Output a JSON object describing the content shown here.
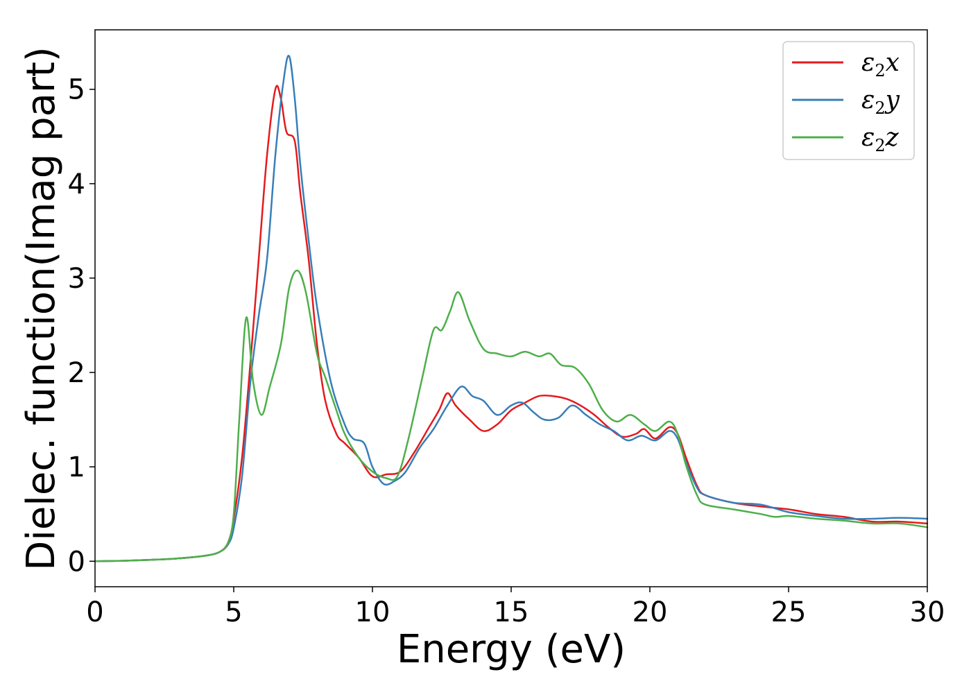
{
  "chart_data": {
    "type": "line",
    "title": "",
    "xlabel": "Energy (eV)",
    "ylabel": "Dielec. function(Imag part)",
    "xlim": [
      0,
      30
    ],
    "ylim": [
      -0.27,
      5.63
    ],
    "xticks": [
      0,
      5,
      10,
      15,
      20,
      25,
      30
    ],
    "yticks": [
      0,
      1,
      2,
      3,
      4,
      5
    ],
    "grid": false,
    "legend_position": "top-right",
    "series": [
      {
        "name": "ε2x",
        "symbol": "ε",
        "subscript": "2",
        "suffix": "x",
        "color": "#e41a1c",
        "points": [
          [
            0,
            0
          ],
          [
            1,
            0.005
          ],
          [
            2,
            0.015
          ],
          [
            3,
            0.03
          ],
          [
            4,
            0.06
          ],
          [
            4.5,
            0.1
          ],
          [
            4.8,
            0.2
          ],
          [
            5.0,
            0.45
          ],
          [
            5.3,
            1.1
          ],
          [
            5.6,
            2.1
          ],
          [
            5.9,
            3.2
          ],
          [
            6.2,
            4.3
          ],
          [
            6.5,
            5.0
          ],
          [
            6.7,
            4.9
          ],
          [
            6.9,
            4.55
          ],
          [
            7.2,
            4.45
          ],
          [
            7.4,
            3.9
          ],
          [
            7.7,
            3.2
          ],
          [
            8.0,
            2.3
          ],
          [
            8.3,
            1.7
          ],
          [
            8.7,
            1.35
          ],
          [
            9.0,
            1.25
          ],
          [
            9.5,
            1.1
          ],
          [
            10.0,
            0.9
          ],
          [
            10.5,
            0.92
          ],
          [
            11.0,
            0.95
          ],
          [
            11.5,
            1.15
          ],
          [
            12.0,
            1.4
          ],
          [
            12.4,
            1.6
          ],
          [
            12.7,
            1.78
          ],
          [
            13.0,
            1.65
          ],
          [
            13.5,
            1.5
          ],
          [
            14.0,
            1.38
          ],
          [
            14.5,
            1.45
          ],
          [
            15.0,
            1.6
          ],
          [
            15.5,
            1.68
          ],
          [
            16.0,
            1.75
          ],
          [
            16.5,
            1.75
          ],
          [
            17.0,
            1.72
          ],
          [
            17.5,
            1.65
          ],
          [
            18.0,
            1.55
          ],
          [
            18.5,
            1.42
          ],
          [
            19.0,
            1.32
          ],
          [
            19.5,
            1.35
          ],
          [
            19.8,
            1.4
          ],
          [
            20.2,
            1.3
          ],
          [
            20.7,
            1.42
          ],
          [
            21.0,
            1.35
          ],
          [
            21.3,
            1.1
          ],
          [
            21.7,
            0.8
          ],
          [
            22.0,
            0.7
          ],
          [
            23.0,
            0.62
          ],
          [
            24.0,
            0.58
          ],
          [
            25.0,
            0.55
          ],
          [
            26.0,
            0.5
          ],
          [
            27.0,
            0.47
          ],
          [
            28.0,
            0.42
          ],
          [
            29.0,
            0.42
          ],
          [
            30.0,
            0.4
          ]
        ]
      },
      {
        "name": "ε2y",
        "symbol": "ε",
        "subscript": "2",
        "suffix": "y",
        "color": "#377eb8",
        "points": [
          [
            0,
            0
          ],
          [
            1,
            0.005
          ],
          [
            2,
            0.015
          ],
          [
            3,
            0.03
          ],
          [
            4,
            0.06
          ],
          [
            4.5,
            0.1
          ],
          [
            4.8,
            0.18
          ],
          [
            5.0,
            0.35
          ],
          [
            5.3,
            0.9
          ],
          [
            5.6,
            1.9
          ],
          [
            5.9,
            2.6
          ],
          [
            6.2,
            3.2
          ],
          [
            6.5,
            4.3
          ],
          [
            6.8,
            5.1
          ],
          [
            7.0,
            5.35
          ],
          [
            7.2,
            4.9
          ],
          [
            7.4,
            4.2
          ],
          [
            7.7,
            3.4
          ],
          [
            8.0,
            2.7
          ],
          [
            8.5,
            1.9
          ],
          [
            9.0,
            1.45
          ],
          [
            9.3,
            1.3
          ],
          [
            9.7,
            1.25
          ],
          [
            10.0,
            1.0
          ],
          [
            10.4,
            0.82
          ],
          [
            10.8,
            0.85
          ],
          [
            11.2,
            0.95
          ],
          [
            11.7,
            1.2
          ],
          [
            12.2,
            1.4
          ],
          [
            12.7,
            1.65
          ],
          [
            13.2,
            1.85
          ],
          [
            13.6,
            1.75
          ],
          [
            14.0,
            1.7
          ],
          [
            14.5,
            1.55
          ],
          [
            15.0,
            1.65
          ],
          [
            15.4,
            1.68
          ],
          [
            15.8,
            1.58
          ],
          [
            16.2,
            1.5
          ],
          [
            16.7,
            1.52
          ],
          [
            17.2,
            1.65
          ],
          [
            17.7,
            1.55
          ],
          [
            18.2,
            1.45
          ],
          [
            18.7,
            1.38
          ],
          [
            19.2,
            1.28
          ],
          [
            19.7,
            1.33
          ],
          [
            20.2,
            1.28
          ],
          [
            20.7,
            1.38
          ],
          [
            21.0,
            1.3
          ],
          [
            21.3,
            1.05
          ],
          [
            21.7,
            0.78
          ],
          [
            22.0,
            0.7
          ],
          [
            23.0,
            0.62
          ],
          [
            24.0,
            0.6
          ],
          [
            25.0,
            0.52
          ],
          [
            26.0,
            0.48
          ],
          [
            27.0,
            0.45
          ],
          [
            28.0,
            0.45
          ],
          [
            29.0,
            0.46
          ],
          [
            30.0,
            0.45
          ]
        ]
      },
      {
        "name": "ε2z",
        "symbol": "ε",
        "subscript": "2",
        "suffix": "z",
        "color": "#4daf4a",
        "points": [
          [
            0,
            0
          ],
          [
            1,
            0.005
          ],
          [
            2,
            0.015
          ],
          [
            3,
            0.03
          ],
          [
            4,
            0.06
          ],
          [
            4.5,
            0.1
          ],
          [
            4.8,
            0.2
          ],
          [
            5.0,
            0.5
          ],
          [
            5.2,
            1.5
          ],
          [
            5.45,
            2.58
          ],
          [
            5.7,
            1.9
          ],
          [
            6.0,
            1.55
          ],
          [
            6.3,
            1.85
          ],
          [
            6.7,
            2.3
          ],
          [
            7.0,
            2.9
          ],
          [
            7.3,
            3.08
          ],
          [
            7.6,
            2.85
          ],
          [
            8.0,
            2.2
          ],
          [
            8.3,
            1.95
          ],
          [
            8.7,
            1.6
          ],
          [
            9.0,
            1.35
          ],
          [
            9.5,
            1.1
          ],
          [
            10.0,
            0.95
          ],
          [
            10.5,
            0.88
          ],
          [
            10.9,
            0.9
          ],
          [
            11.3,
            1.3
          ],
          [
            11.8,
            1.95
          ],
          [
            12.2,
            2.45
          ],
          [
            12.5,
            2.45
          ],
          [
            12.8,
            2.65
          ],
          [
            13.1,
            2.85
          ],
          [
            13.5,
            2.55
          ],
          [
            14.0,
            2.25
          ],
          [
            14.5,
            2.2
          ],
          [
            15.0,
            2.17
          ],
          [
            15.5,
            2.22
          ],
          [
            16.0,
            2.17
          ],
          [
            16.4,
            2.2
          ],
          [
            16.8,
            2.08
          ],
          [
            17.3,
            2.05
          ],
          [
            17.8,
            1.88
          ],
          [
            18.3,
            1.6
          ],
          [
            18.8,
            1.48
          ],
          [
            19.3,
            1.55
          ],
          [
            19.8,
            1.45
          ],
          [
            20.2,
            1.38
          ],
          [
            20.7,
            1.48
          ],
          [
            21.0,
            1.35
          ],
          [
            21.3,
            1.02
          ],
          [
            21.7,
            0.7
          ],
          [
            22.0,
            0.6
          ],
          [
            23.0,
            0.55
          ],
          [
            24.0,
            0.5
          ],
          [
            24.5,
            0.47
          ],
          [
            25.0,
            0.48
          ],
          [
            26.0,
            0.45
          ],
          [
            27.0,
            0.43
          ],
          [
            28.0,
            0.4
          ],
          [
            29.0,
            0.4
          ],
          [
            30.0,
            0.36
          ]
        ]
      }
    ]
  }
}
